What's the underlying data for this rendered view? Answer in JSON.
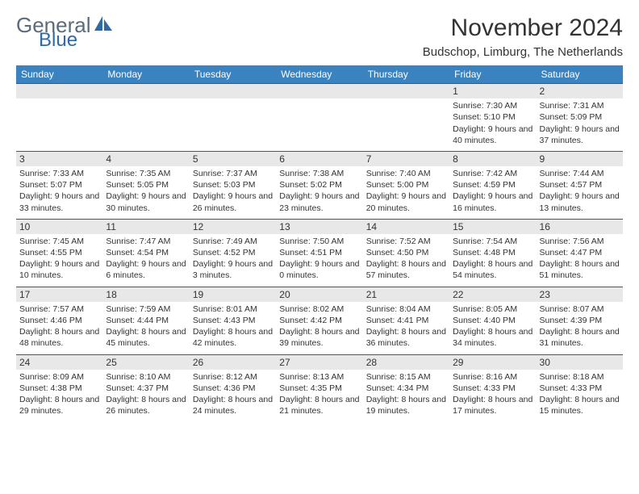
{
  "logo": {
    "text1": "General",
    "text2": "Blue"
  },
  "title": "November 2024",
  "location": "Budschop, Limburg, The Netherlands",
  "colors": {
    "header_bg": "#3b83c0",
    "header_text": "#ffffff",
    "daynum_bg": "#e8e8e8",
    "row_border": "#3b5a7a",
    "logo_gray": "#5a6b7a",
    "logo_blue": "#2f6aa8",
    "text": "#333333",
    "background": "#ffffff"
  },
  "dayHeaders": [
    "Sunday",
    "Monday",
    "Tuesday",
    "Wednesday",
    "Thursday",
    "Friday",
    "Saturday"
  ],
  "weeks": [
    [
      {
        "n": "",
        "sr": "",
        "ss": "",
        "dl": ""
      },
      {
        "n": "",
        "sr": "",
        "ss": "",
        "dl": ""
      },
      {
        "n": "",
        "sr": "",
        "ss": "",
        "dl": ""
      },
      {
        "n": "",
        "sr": "",
        "ss": "",
        "dl": ""
      },
      {
        "n": "",
        "sr": "",
        "ss": "",
        "dl": ""
      },
      {
        "n": "1",
        "sr": "Sunrise: 7:30 AM",
        "ss": "Sunset: 5:10 PM",
        "dl": "Daylight: 9 hours and 40 minutes."
      },
      {
        "n": "2",
        "sr": "Sunrise: 7:31 AM",
        "ss": "Sunset: 5:09 PM",
        "dl": "Daylight: 9 hours and 37 minutes."
      }
    ],
    [
      {
        "n": "3",
        "sr": "Sunrise: 7:33 AM",
        "ss": "Sunset: 5:07 PM",
        "dl": "Daylight: 9 hours and 33 minutes."
      },
      {
        "n": "4",
        "sr": "Sunrise: 7:35 AM",
        "ss": "Sunset: 5:05 PM",
        "dl": "Daylight: 9 hours and 30 minutes."
      },
      {
        "n": "5",
        "sr": "Sunrise: 7:37 AM",
        "ss": "Sunset: 5:03 PM",
        "dl": "Daylight: 9 hours and 26 minutes."
      },
      {
        "n": "6",
        "sr": "Sunrise: 7:38 AM",
        "ss": "Sunset: 5:02 PM",
        "dl": "Daylight: 9 hours and 23 minutes."
      },
      {
        "n": "7",
        "sr": "Sunrise: 7:40 AM",
        "ss": "Sunset: 5:00 PM",
        "dl": "Daylight: 9 hours and 20 minutes."
      },
      {
        "n": "8",
        "sr": "Sunrise: 7:42 AM",
        "ss": "Sunset: 4:59 PM",
        "dl": "Daylight: 9 hours and 16 minutes."
      },
      {
        "n": "9",
        "sr": "Sunrise: 7:44 AM",
        "ss": "Sunset: 4:57 PM",
        "dl": "Daylight: 9 hours and 13 minutes."
      }
    ],
    [
      {
        "n": "10",
        "sr": "Sunrise: 7:45 AM",
        "ss": "Sunset: 4:55 PM",
        "dl": "Daylight: 9 hours and 10 minutes."
      },
      {
        "n": "11",
        "sr": "Sunrise: 7:47 AM",
        "ss": "Sunset: 4:54 PM",
        "dl": "Daylight: 9 hours and 6 minutes."
      },
      {
        "n": "12",
        "sr": "Sunrise: 7:49 AM",
        "ss": "Sunset: 4:52 PM",
        "dl": "Daylight: 9 hours and 3 minutes."
      },
      {
        "n": "13",
        "sr": "Sunrise: 7:50 AM",
        "ss": "Sunset: 4:51 PM",
        "dl": "Daylight: 9 hours and 0 minutes."
      },
      {
        "n": "14",
        "sr": "Sunrise: 7:52 AM",
        "ss": "Sunset: 4:50 PM",
        "dl": "Daylight: 8 hours and 57 minutes."
      },
      {
        "n": "15",
        "sr": "Sunrise: 7:54 AM",
        "ss": "Sunset: 4:48 PM",
        "dl": "Daylight: 8 hours and 54 minutes."
      },
      {
        "n": "16",
        "sr": "Sunrise: 7:56 AM",
        "ss": "Sunset: 4:47 PM",
        "dl": "Daylight: 8 hours and 51 minutes."
      }
    ],
    [
      {
        "n": "17",
        "sr": "Sunrise: 7:57 AM",
        "ss": "Sunset: 4:46 PM",
        "dl": "Daylight: 8 hours and 48 minutes."
      },
      {
        "n": "18",
        "sr": "Sunrise: 7:59 AM",
        "ss": "Sunset: 4:44 PM",
        "dl": "Daylight: 8 hours and 45 minutes."
      },
      {
        "n": "19",
        "sr": "Sunrise: 8:01 AM",
        "ss": "Sunset: 4:43 PM",
        "dl": "Daylight: 8 hours and 42 minutes."
      },
      {
        "n": "20",
        "sr": "Sunrise: 8:02 AM",
        "ss": "Sunset: 4:42 PM",
        "dl": "Daylight: 8 hours and 39 minutes."
      },
      {
        "n": "21",
        "sr": "Sunrise: 8:04 AM",
        "ss": "Sunset: 4:41 PM",
        "dl": "Daylight: 8 hours and 36 minutes."
      },
      {
        "n": "22",
        "sr": "Sunrise: 8:05 AM",
        "ss": "Sunset: 4:40 PM",
        "dl": "Daylight: 8 hours and 34 minutes."
      },
      {
        "n": "23",
        "sr": "Sunrise: 8:07 AM",
        "ss": "Sunset: 4:39 PM",
        "dl": "Daylight: 8 hours and 31 minutes."
      }
    ],
    [
      {
        "n": "24",
        "sr": "Sunrise: 8:09 AM",
        "ss": "Sunset: 4:38 PM",
        "dl": "Daylight: 8 hours and 29 minutes."
      },
      {
        "n": "25",
        "sr": "Sunrise: 8:10 AM",
        "ss": "Sunset: 4:37 PM",
        "dl": "Daylight: 8 hours and 26 minutes."
      },
      {
        "n": "26",
        "sr": "Sunrise: 8:12 AM",
        "ss": "Sunset: 4:36 PM",
        "dl": "Daylight: 8 hours and 24 minutes."
      },
      {
        "n": "27",
        "sr": "Sunrise: 8:13 AM",
        "ss": "Sunset: 4:35 PM",
        "dl": "Daylight: 8 hours and 21 minutes."
      },
      {
        "n": "28",
        "sr": "Sunrise: 8:15 AM",
        "ss": "Sunset: 4:34 PM",
        "dl": "Daylight: 8 hours and 19 minutes."
      },
      {
        "n": "29",
        "sr": "Sunrise: 8:16 AM",
        "ss": "Sunset: 4:33 PM",
        "dl": "Daylight: 8 hours and 17 minutes."
      },
      {
        "n": "30",
        "sr": "Sunrise: 8:18 AM",
        "ss": "Sunset: 4:33 PM",
        "dl": "Daylight: 8 hours and 15 minutes."
      }
    ]
  ]
}
